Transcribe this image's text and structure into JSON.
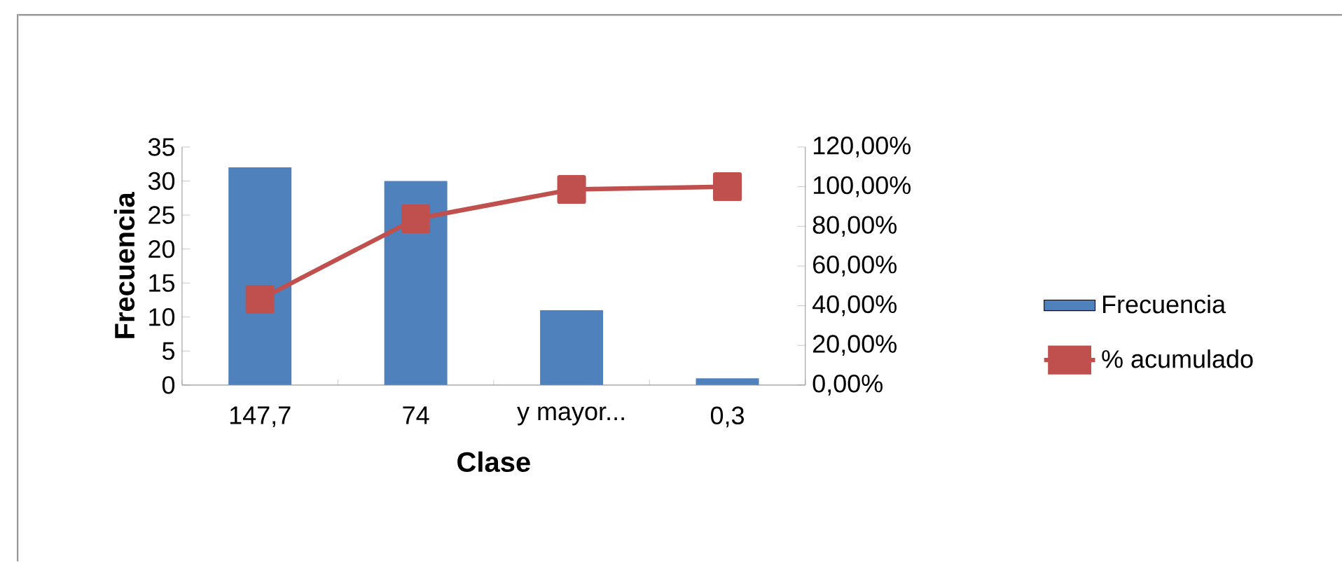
{
  "chart_data": {
    "type": "bar",
    "xlabel": "Clase",
    "ylabel": "Frecuencia",
    "categories": [
      "147,7",
      "74",
      "y mayor...",
      "0,3"
    ],
    "series": [
      {
        "name": "Frecuencia",
        "color": "#4f81bd",
        "values": [
          32,
          30,
          11,
          1
        ]
      },
      {
        "name": "% acumulado",
        "type": "line",
        "axis": "y2",
        "marker": "square",
        "color": "#c0504d",
        "values": [
          43.2,
          83.8,
          98.6,
          100
        ]
      }
    ],
    "ylim": [
      0,
      35
    ],
    "yticks": [
      0,
      5,
      10,
      15,
      20,
      25,
      30,
      35
    ],
    "y2lim": [
      0,
      120
    ],
    "y2ticks": [
      {
        "value": 0,
        "label": "0,00%"
      },
      {
        "value": 20,
        "label": "20,00%"
      },
      {
        "value": 40,
        "label": "40,00%"
      },
      {
        "value": 60,
        "label": "60,00%"
      },
      {
        "value": 80,
        "label": "80,00%"
      },
      {
        "value": 100,
        "label": "100,00%"
      },
      {
        "value": 120,
        "label": "120,00%"
      }
    ],
    "legend": "right"
  }
}
